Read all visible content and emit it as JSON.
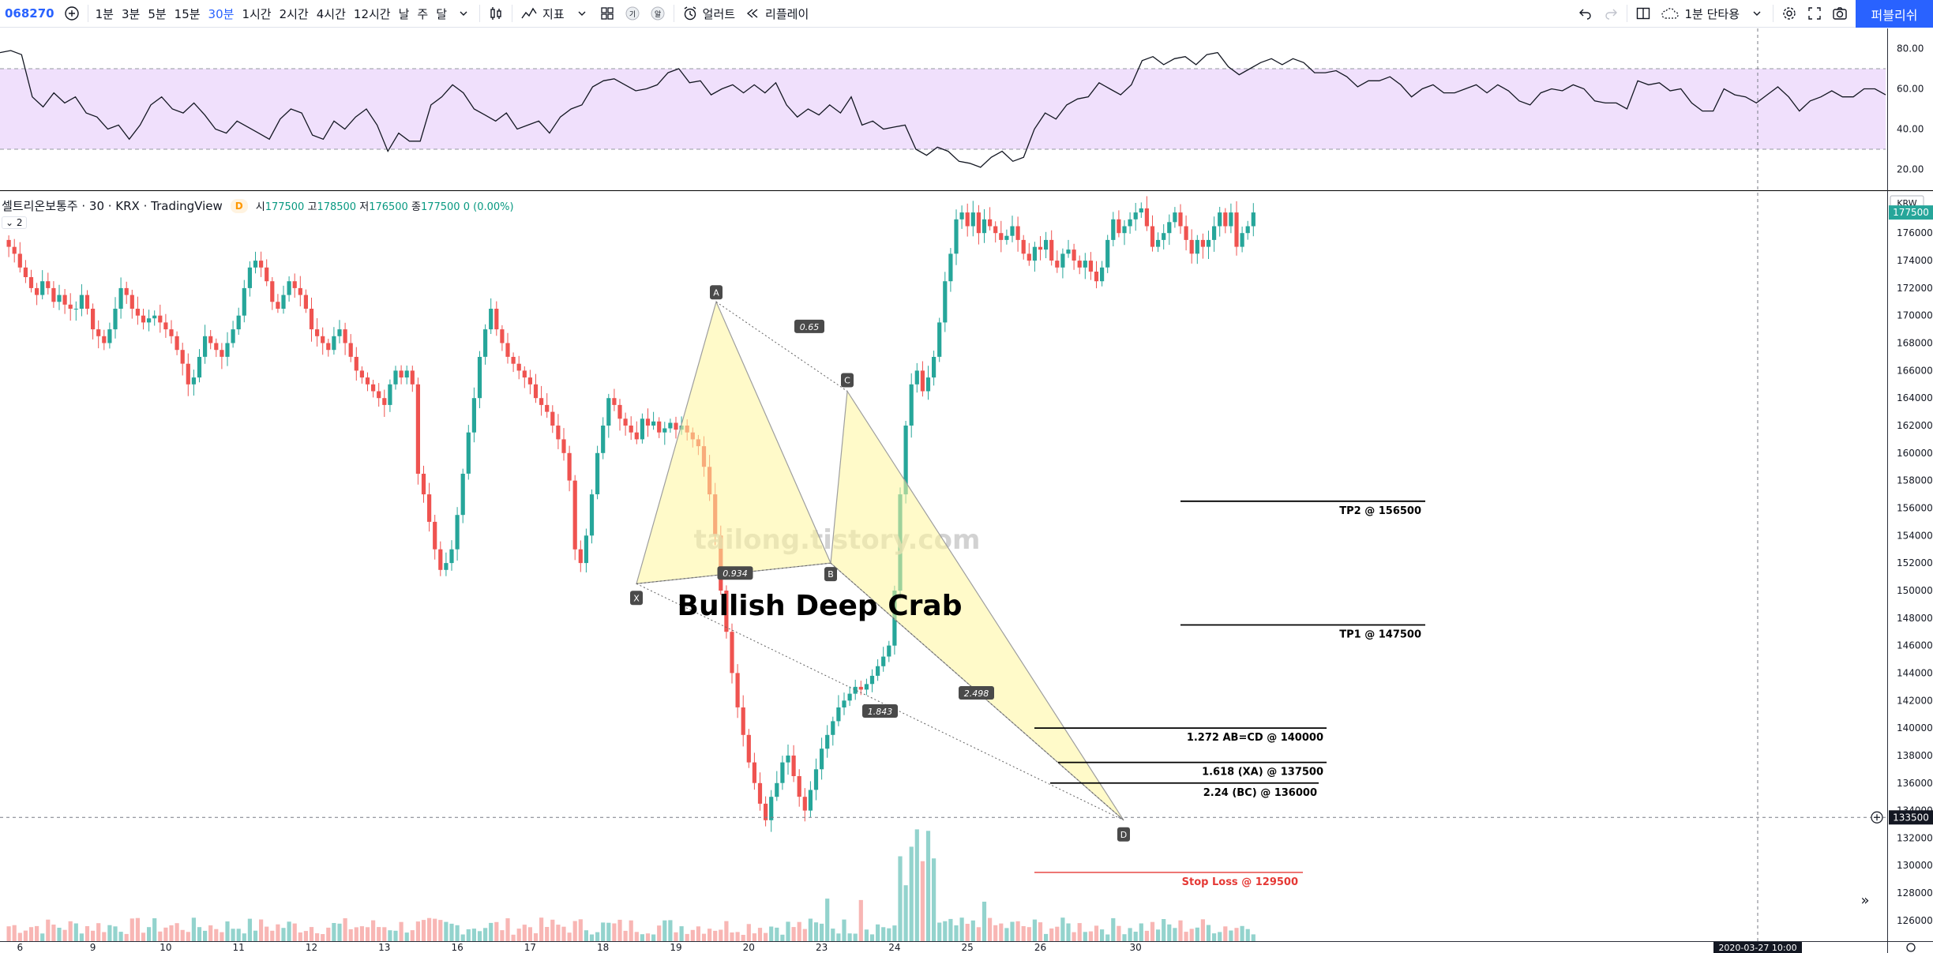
{
  "toolbar": {
    "symbol": "068270",
    "intervals": [
      "1분",
      "3분",
      "5분",
      "15분",
      "30분",
      "1시간",
      "2시간",
      "4시간",
      "12시간",
      "날",
      "주",
      "달"
    ],
    "active_interval": "30분",
    "indicators_label": "지표",
    "alert_label": "얼러트",
    "replay_label": "리플레이",
    "layout_label": "1분 단타용",
    "publish_label": "퍼블리쉬"
  },
  "legend": {
    "title": "셀트리온보통주 · 30 · KRX · TradingView",
    "badge": "D",
    "o_label": "시",
    "o": "177500",
    "h_label": "고",
    "h": "178500",
    "l_label": "저",
    "l": "176500",
    "c_label": "종",
    "c": "177500",
    "change": "0 (0.00%)",
    "collapse": "2"
  },
  "watermark": "tailong.tistory.com",
  "currency": "KRW",
  "crosshair": {
    "price_label": "133500",
    "time_label": "2020-03-27   10:00"
  },
  "colors": {
    "up": "#26a69a",
    "down": "#ef5350",
    "rsi_band": "#f0e0fc",
    "accent": "#2962ff"
  },
  "chart_data": [
    {
      "type": "line",
      "title": "",
      "ylim": [
        10,
        90
      ],
      "y_ticks": [
        "80.00",
        "60.00",
        "40.00",
        "20.00"
      ],
      "band": [
        30,
        70
      ],
      "series": [
        {
          "values": [
            78,
            79,
            77,
            56,
            51,
            58,
            53,
            56,
            48,
            46,
            40,
            42,
            35,
            42,
            52,
            56,
            50,
            48,
            53,
            47,
            40,
            38,
            44,
            41,
            38,
            35,
            45,
            50,
            48,
            37,
            35,
            44,
            40,
            46,
            50,
            42,
            29,
            38,
            34,
            34,
            52,
            56,
            62,
            58,
            50,
            47,
            44,
            48,
            40,
            42,
            44,
            38,
            46,
            50,
            52,
            61,
            64,
            65,
            62,
            59,
            60,
            62,
            68,
            70,
            63,
            64,
            57,
            60,
            62,
            58,
            62,
            58,
            63,
            52,
            46,
            50,
            47,
            52,
            48,
            56,
            42,
            44,
            40,
            41,
            42,
            30,
            27,
            31,
            29,
            24,
            23,
            21,
            26,
            29,
            24,
            26,
            40,
            48,
            45,
            52,
            55,
            56,
            63,
            60,
            57,
            62,
            74,
            76,
            72,
            75,
            76,
            72,
            77,
            78,
            71,
            67,
            70,
            73,
            75,
            72,
            75,
            73,
            68,
            68,
            69,
            66,
            61,
            64,
            64,
            66,
            62,
            56,
            60,
            62,
            58,
            58,
            60,
            62,
            58,
            62,
            59,
            54,
            52,
            58,
            60,
            59,
            62,
            60,
            54,
            53,
            53,
            50,
            64,
            62,
            63,
            59,
            60,
            53,
            49,
            49,
            60,
            57,
            56,
            53,
            57,
            61,
            56,
            49,
            54,
            56,
            59,
            56,
            56,
            60,
            60,
            57
          ]
        }
      ]
    },
    {
      "type": "candlestick",
      "title": "셀트리온보통주 · 30 · KRX · TradingView",
      "ylim": [
        124500,
        179000
      ],
      "y_ticks": [
        "176000",
        "174000",
        "172000",
        "170000",
        "168000",
        "166000",
        "164000",
        "162000",
        "160000",
        "158000",
        "156000",
        "154000",
        "152000",
        "150000",
        "148000",
        "146000",
        "144000",
        "142000",
        "140000",
        "138000",
        "136000",
        "134000",
        "132000",
        "130000",
        "128000",
        "126000"
      ],
      "x_ticks": [
        "6",
        "9",
        "10",
        "11",
        "12",
        "13",
        "16",
        "17",
        "18",
        "19",
        "20",
        "23",
        "24",
        "25",
        "26",
        "30"
      ],
      "ohlc_path": [
        175500,
        175000,
        174500,
        173500,
        172800,
        172000,
        171500,
        172500,
        172000,
        171000,
        171500,
        170800,
        170500,
        170500,
        171500,
        170500,
        169000,
        168500,
        168000,
        169000,
        170500,
        172000,
        171500,
        170500,
        170000,
        169500,
        169800,
        170000,
        169500,
        169000,
        168500,
        167500,
        166500,
        165000,
        165500,
        167000,
        168500,
        168000,
        167500,
        167000,
        168000,
        169000,
        170000,
        172000,
        173500,
        174000,
        173500,
        172500,
        171000,
        170500,
        171500,
        172500,
        172000,
        171500,
        170500,
        169000,
        168500,
        168000,
        167500,
        168500,
        169000,
        168000,
        167000,
        166000,
        165500,
        165000,
        164500,
        164000,
        163500,
        165000,
        166000,
        165500,
        166000,
        165000,
        158500,
        157000,
        155000,
        153000,
        151500,
        152000,
        153000,
        155500,
        158500,
        161500,
        164000,
        167000,
        169000,
        170500,
        169000,
        168000,
        167000,
        166500,
        166000,
        165500,
        165000,
        164000,
        163500,
        163000,
        162000,
        161000,
        160000,
        158000,
        153000,
        152000,
        154000,
        157000,
        160000,
        162000,
        164000,
        163500,
        162500,
        162000,
        161500,
        161000,
        162500,
        162000,
        162300,
        161500,
        161800,
        162200,
        161700,
        162000,
        161500,
        161000,
        160500,
        159000,
        157000,
        154000,
        150000,
        147000,
        144000,
        141500,
        139500,
        137500,
        136000,
        134500,
        133300,
        135000,
        136000,
        137500,
        138000,
        136500,
        135000,
        134000,
        135500,
        137000,
        138500,
        139500,
        140500,
        141500,
        142000,
        142500,
        143000,
        142800,
        143200,
        143800,
        144500,
        145200,
        146000,
        150000,
        157000,
        162000,
        165000,
        166000,
        164500,
        165500,
        167000,
        169500,
        172500,
        174500,
        177000,
        177500,
        176500,
        177500,
        176000,
        177000,
        176500,
        176000,
        175500,
        175800,
        176500,
        175500,
        174500,
        174000,
        175000,
        174800,
        175500,
        174000,
        173500,
        174500,
        174800,
        174000,
        173500,
        174000,
        173200,
        172500,
        173500,
        175500,
        177000,
        176000,
        176500,
        177000,
        177500,
        177800,
        176500,
        175000,
        175500,
        176000,
        176800,
        177500,
        176500,
        175500,
        174500,
        175500,
        175000,
        175500,
        176500,
        177500,
        176500,
        177500,
        175000,
        176000,
        176500,
        177500
      ]
    }
  ],
  "pattern": {
    "name": "Bullish Deep Crab",
    "points": {
      "X": {
        "label": "X",
        "x_index": 86,
        "price": 150500
      },
      "A": {
        "label": "A",
        "x_index": 98,
        "price": 171000
      },
      "B": {
        "label": "B",
        "x_index": 116,
        "price": 152000
      },
      "C": {
        "label": "C",
        "x_index": 118,
        "price": 164500
      },
      "D": {
        "label": "D",
        "x_index": 153,
        "price": 133300
      }
    },
    "ratios": [
      {
        "text": "0.65"
      },
      {
        "text": "0.934"
      },
      {
        "text": "2.498"
      },
      {
        "text": "1.843"
      }
    ]
  },
  "levels": [
    {
      "text": "TP2 @ 156500",
      "price": 156500,
      "color": "#000000"
    },
    {
      "text": "TP1 @ 147500",
      "price": 147500,
      "color": "#000000"
    },
    {
      "text": "1.272 AB=CD @ 140000",
      "price": 140000,
      "color": "#000000"
    },
    {
      "text": "1.618 (XA) @ 137500",
      "price": 137500,
      "color": "#000000"
    },
    {
      "text": "2.24 (BC) @ 136000",
      "price": 136000,
      "color": "#000000"
    },
    {
      "text": "Stop Loss @ 129500",
      "price": 129500,
      "color": "#e53935"
    }
  ]
}
